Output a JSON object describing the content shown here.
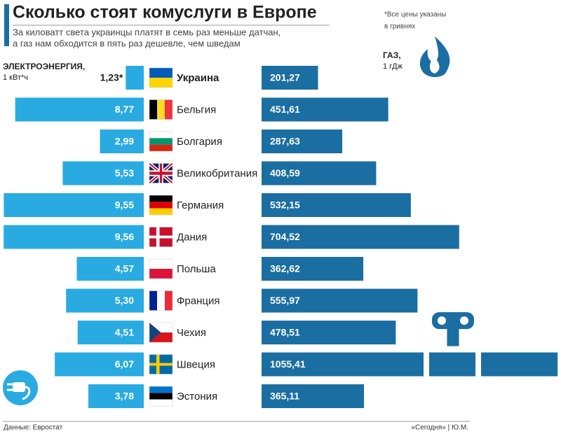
{
  "chart_data": {
    "type": "butterfly-bar",
    "title": "Сколько стоят комуслуги в Европе",
    "subtitle": [
      "За киловатт света украинцы платят в семь раз меньше датчан,",
      "а газ нам обходится в пять раз дешевле, чем шведам"
    ],
    "note": [
      "*Все цены указаны",
      "в гривнях"
    ],
    "categories": [
      "Украина",
      "Бельгия",
      "Болгария",
      "Великобритания",
      "Германия",
      "Дания",
      "Польша",
      "Франция",
      "Чехия",
      "Швеция",
      "Эстония"
    ],
    "series": [
      {
        "name": "ЭЛЕКТРОЭНЕРГИЯ,",
        "unit": "1 кВт*ч",
        "color": "#29abe2",
        "xlim": [
          0,
          10
        ],
        "values": [
          1.23,
          8.77,
          2.99,
          5.53,
          9.55,
          9.56,
          4.57,
          5.3,
          4.51,
          6.07,
          3.78
        ],
        "value_labels": [
          "1,23*",
          "8,77",
          "2,99",
          "5,53",
          "9,55",
          "9,56",
          "4,57",
          "5,30",
          "4,51",
          "6,07",
          "3,78"
        ]
      },
      {
        "name": "ГАЗ,",
        "unit": "1 гДж",
        "color": "#1b6ea1",
        "xlim": [
          0,
          1060
        ],
        "values": [
          201.27,
          451.61,
          287.63,
          408.59,
          532.15,
          704.52,
          362.62,
          555.97,
          478.51,
          1055.41,
          365.11
        ],
        "value_labels": [
          "201,27",
          "451,61",
          "287,63",
          "408,59",
          "532,15",
          "704,52",
          "362,62",
          "555,97",
          "478,51",
          "1055,41",
          "365,11"
        ]
      }
    ],
    "source": "Данные: Евростат",
    "credit": "«Сегодня» | Ю.М."
  }
}
